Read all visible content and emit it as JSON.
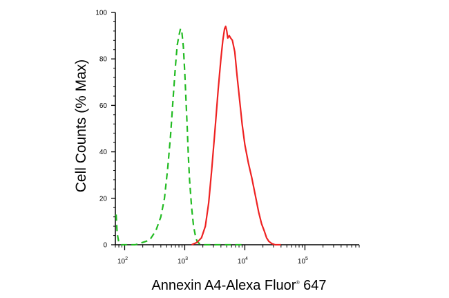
{
  "chart_data": {
    "type": "line",
    "title": "",
    "xlabel": "Annexin A4-Alexa Fluor",
    "xlabel_mark": "®",
    "xlabel_suffix": " 647",
    "ylabel": "Cell Counts (% Max)",
    "x_scale": "log",
    "xlim": [
      70,
      800000
    ],
    "ylim": [
      0,
      100
    ],
    "y_ticks": [
      0,
      20,
      40,
      60,
      80,
      100
    ],
    "x_ticks": [
      {
        "value": 100,
        "base": "10",
        "exp": "2"
      },
      {
        "value": 1000,
        "base": "10",
        "exp": "3"
      },
      {
        "value": 10000,
        "base": "10",
        "exp": "4"
      },
      {
        "value": 100000,
        "base": "10",
        "exp": "5"
      }
    ],
    "grid": false,
    "series": [
      {
        "color": "#22bb22",
        "style": "dashed",
        "x": [
          72,
          75,
          80,
          88,
          100,
          115,
          150,
          200,
          260,
          330,
          400,
          460,
          520,
          580,
          640,
          700,
          750,
          800,
          850,
          900,
          950,
          1000,
          1050,
          1100,
          1150,
          1200,
          1300,
          1400,
          1500,
          1600,
          1750,
          2000,
          3000,
          10000
        ],
        "y": [
          13,
          5,
          1,
          0,
          0,
          0,
          0,
          1,
          2,
          6,
          12,
          20,
          33,
          47,
          63,
          77,
          86,
          90,
          93,
          91,
          85,
          74,
          62,
          50,
          38,
          28,
          16,
          8,
          4,
          1.5,
          0.5,
          0,
          0,
          0
        ]
      },
      {
        "color": "#ee2222",
        "style": "solid",
        "x": [
          1300,
          1600,
          1900,
          2200,
          2500,
          2800,
          3200,
          3600,
          4000,
          4300,
          4600,
          4800,
          5000,
          5200,
          5500,
          5800,
          6200,
          6800,
          7400,
          8200,
          9000,
          10000,
          11500,
          13000,
          15000,
          17000,
          19000,
          21000,
          23000,
          25000,
          28000,
          32000,
          40000
        ],
        "y": [
          0,
          1,
          3,
          8,
          18,
          32,
          50,
          67,
          80,
          88,
          93,
          94,
          92,
          89,
          90,
          89,
          88,
          83,
          73,
          62,
          52,
          43,
          35,
          29,
          21,
          14,
          9,
          6,
          3,
          1.5,
          0.5,
          0,
          0
        ]
      }
    ]
  }
}
